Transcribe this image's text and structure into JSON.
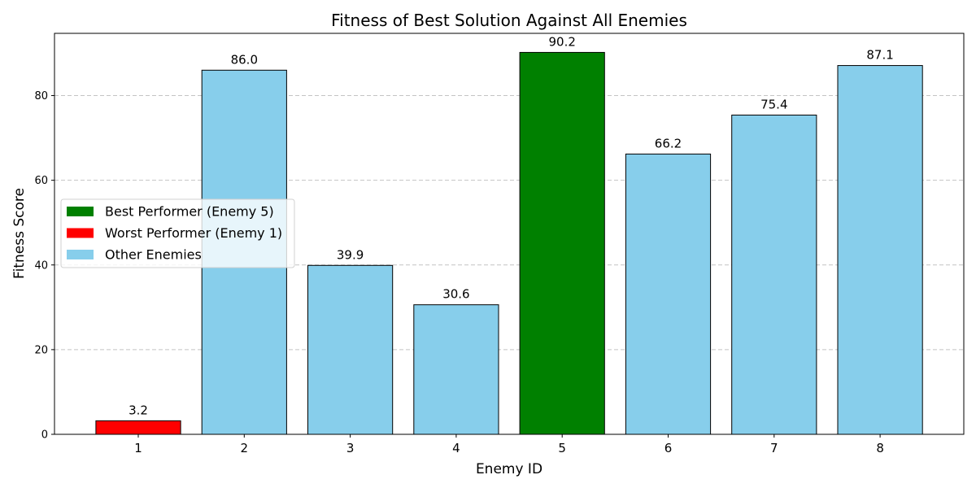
{
  "chart_data": {
    "type": "bar",
    "title": "Fitness of Best Solution Against All Enemies",
    "xlabel": "Enemy ID",
    "ylabel": "Fitness Score",
    "categories": [
      "1",
      "2",
      "3",
      "4",
      "5",
      "6",
      "7",
      "8"
    ],
    "values": [
      3.2,
      86.0,
      39.9,
      30.6,
      90.2,
      66.2,
      75.4,
      87.1
    ],
    "value_labels": [
      "3.2",
      "86.0",
      "39.9",
      "30.6",
      "90.2",
      "66.2",
      "75.4",
      "87.1"
    ],
    "bar_roles": [
      "worst",
      "other",
      "other",
      "other",
      "best",
      "other",
      "other",
      "other"
    ],
    "ylim": [
      0,
      94.7
    ],
    "yticks": [
      0,
      20,
      40,
      60,
      80
    ],
    "grid": "y-dashed",
    "legend_position": "center-left",
    "legend": [
      {
        "label": "Best Performer (Enemy 5)",
        "role": "best"
      },
      {
        "label": "Worst Performer (Enemy 1)",
        "role": "worst"
      },
      {
        "label": "Other Enemies",
        "role": "other"
      }
    ],
    "colors": {
      "best": "#008000",
      "worst": "#ff0000",
      "other": "#87ceeb",
      "edge": "#000000"
    }
  }
}
